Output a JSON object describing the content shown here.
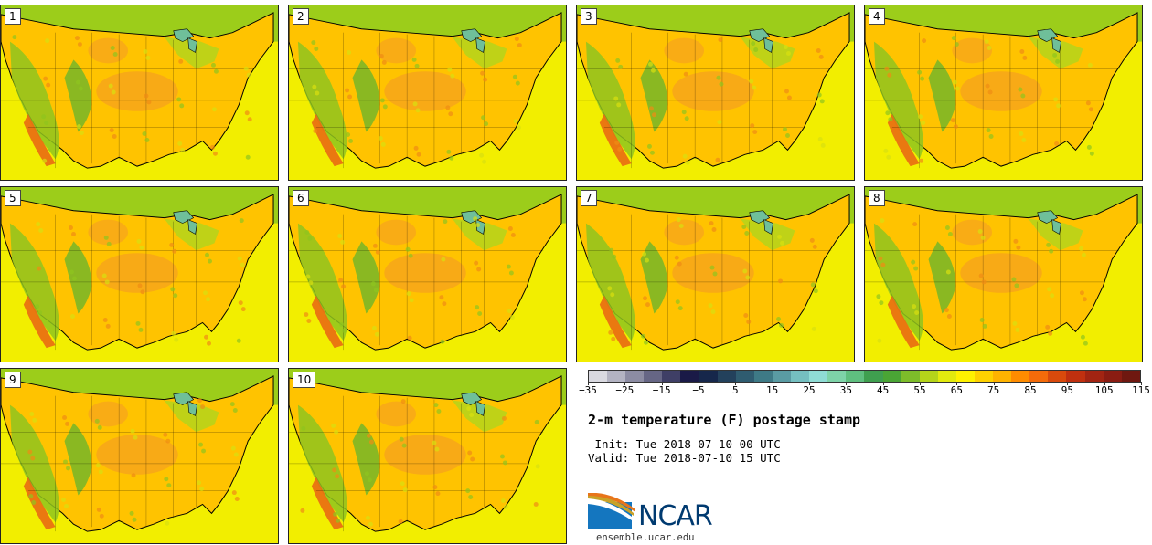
{
  "stamps": [
    {
      "label": "1"
    },
    {
      "label": "2"
    },
    {
      "label": "3"
    },
    {
      "label": "4"
    },
    {
      "label": "5"
    },
    {
      "label": "6"
    },
    {
      "label": "7"
    },
    {
      "label": "8"
    },
    {
      "label": "9"
    },
    {
      "label": "10"
    }
  ],
  "colorbar": {
    "colors": [
      "#d9d9e0",
      "#b3b3c2",
      "#8c8ca3",
      "#666685",
      "#3f3f66",
      "#1a1a47",
      "#16274b",
      "#23415c",
      "#2f5c70",
      "#3e7a86",
      "#5a9ba3",
      "#75bfc0",
      "#8fdcd5",
      "#7ed3a8",
      "#5fbf7f",
      "#3f9f4f",
      "#4aa535",
      "#7dbd2a",
      "#b5d41a",
      "#e2ea0e",
      "#fff200",
      "#ffd100",
      "#ffb300",
      "#ff8c00",
      "#f46b0a",
      "#d94a0c",
      "#c0300f",
      "#a22412",
      "#8a1c12",
      "#6f1810"
    ],
    "tick_labels": [
      "−35",
      "−25",
      "−15",
      "−5",
      "5",
      "15",
      "25",
      "35",
      "45",
      "55",
      "65",
      "75",
      "85",
      "95",
      "105",
      "115"
    ]
  },
  "title": "2-m temperature (F) postage stamp",
  "init": " Init: Tue 2018-07-10 00 UTC",
  "valid": "Valid: Tue 2018-07-10 15 UTC",
  "logo_text": "NCAR",
  "logo_url": "ensemble.ucar.edu"
}
